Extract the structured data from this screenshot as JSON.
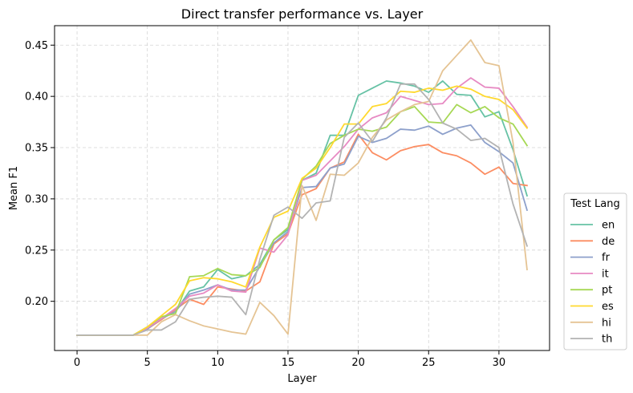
{
  "chart_data": {
    "type": "line",
    "title": "Direct transfer performance vs. Layer",
    "xlabel": "Layer",
    "ylabel": "Mean F1",
    "xlim": [
      -1.6,
      33.6
    ],
    "ylim": [
      0.152,
      0.469
    ],
    "xticks": [
      0,
      5,
      10,
      15,
      20,
      25,
      30
    ],
    "xtick_labels": [
      "0",
      "5",
      "10",
      "15",
      "20",
      "25",
      "30"
    ],
    "yticks": [
      0.2,
      0.25,
      0.3,
      0.35,
      0.4,
      0.45
    ],
    "ytick_labels": [
      "0.20",
      "0.25",
      "0.30",
      "0.35",
      "0.40",
      "0.45"
    ],
    "grid": true,
    "legend": {
      "title": "Test Lang",
      "placement": "outside-right-bottom"
    },
    "x": [
      0,
      1,
      2,
      3,
      4,
      5,
      6,
      7,
      8,
      9,
      10,
      11,
      12,
      13,
      14,
      15,
      16,
      17,
      18,
      19,
      20,
      21,
      22,
      23,
      24,
      25,
      26,
      27,
      28,
      29,
      30,
      31,
      32
    ],
    "series": [
      {
        "name": "en",
        "color": "#66c2a5",
        "values": [
          0.167,
          0.167,
          0.167,
          0.167,
          0.167,
          0.175,
          0.183,
          0.19,
          0.21,
          0.214,
          0.231,
          0.222,
          0.225,
          0.236,
          0.26,
          0.27,
          0.318,
          0.325,
          0.362,
          0.362,
          0.401,
          0.408,
          0.415,
          0.413,
          0.41,
          0.404,
          0.415,
          0.402,
          0.401,
          0.38,
          0.385,
          0.348,
          0.303
        ]
      },
      {
        "name": "de",
        "color": "#fc8d62",
        "values": [
          0.167,
          0.167,
          0.167,
          0.167,
          0.167,
          0.173,
          0.182,
          0.192,
          0.202,
          0.197,
          0.214,
          0.212,
          0.21,
          0.219,
          0.256,
          0.266,
          0.304,
          0.31,
          0.33,
          0.336,
          0.363,
          0.345,
          0.338,
          0.347,
          0.351,
          0.353,
          0.345,
          0.342,
          0.335,
          0.324,
          0.331,
          0.315,
          0.313
        ]
      },
      {
        "name": "fr",
        "color": "#8da0cb",
        "values": [
          0.167,
          0.167,
          0.167,
          0.167,
          0.167,
          0.173,
          0.183,
          0.19,
          0.207,
          0.211,
          0.216,
          0.211,
          0.211,
          0.234,
          0.257,
          0.268,
          0.311,
          0.312,
          0.33,
          0.334,
          0.361,
          0.355,
          0.359,
          0.368,
          0.367,
          0.371,
          0.363,
          0.369,
          0.372,
          0.355,
          0.346,
          0.335,
          0.289
        ]
      },
      {
        "name": "it",
        "color": "#e78ac3",
        "values": [
          0.167,
          0.167,
          0.167,
          0.167,
          0.167,
          0.174,
          0.183,
          0.193,
          0.205,
          0.208,
          0.216,
          0.21,
          0.209,
          0.252,
          0.248,
          0.265,
          0.318,
          0.323,
          0.337,
          0.351,
          0.368,
          0.379,
          0.384,
          0.4,
          0.396,
          0.392,
          0.393,
          0.408,
          0.418,
          0.409,
          0.408,
          0.39,
          0.37
        ]
      },
      {
        "name": "pt",
        "color": "#a6d854",
        "values": [
          0.167,
          0.167,
          0.167,
          0.167,
          0.167,
          0.175,
          0.185,
          0.188,
          0.224,
          0.225,
          0.232,
          0.226,
          0.225,
          0.233,
          0.26,
          0.272,
          0.319,
          0.332,
          0.354,
          0.362,
          0.368,
          0.366,
          0.37,
          0.385,
          0.39,
          0.375,
          0.374,
          0.392,
          0.384,
          0.39,
          0.379,
          0.373,
          0.352
        ]
      },
      {
        "name": "es",
        "color": "#ffd92f",
        "values": [
          0.167,
          0.167,
          0.167,
          0.167,
          0.167,
          0.175,
          0.186,
          0.197,
          0.22,
          0.223,
          0.222,
          0.219,
          0.214,
          0.253,
          0.282,
          0.288,
          0.32,
          0.33,
          0.35,
          0.373,
          0.373,
          0.39,
          0.393,
          0.405,
          0.404,
          0.408,
          0.406,
          0.41,
          0.407,
          0.4,
          0.397,
          0.387,
          0.369
        ]
      },
      {
        "name": "hi",
        "color": "#e5c494",
        "values": [
          0.167,
          0.167,
          0.167,
          0.167,
          0.167,
          0.167,
          0.18,
          0.187,
          0.181,
          0.176,
          0.173,
          0.17,
          0.168,
          0.199,
          0.186,
          0.168,
          0.313,
          0.279,
          0.324,
          0.323,
          0.335,
          0.36,
          0.377,
          0.385,
          0.392,
          0.395,
          0.425,
          0.44,
          0.455,
          0.433,
          0.43,
          0.355,
          0.231
        ]
      },
      {
        "name": "th",
        "color": "#b3b3b3",
        "values": [
          0.167,
          0.167,
          0.167,
          0.167,
          0.167,
          0.172,
          0.172,
          0.18,
          0.202,
          0.204,
          0.205,
          0.204,
          0.187,
          0.241,
          0.284,
          0.292,
          0.281,
          0.296,
          0.298,
          0.36,
          0.374,
          0.356,
          0.379,
          0.412,
          0.412,
          0.397,
          0.374,
          0.368,
          0.357,
          0.359,
          0.35,
          0.295,
          0.254
        ]
      }
    ]
  }
}
